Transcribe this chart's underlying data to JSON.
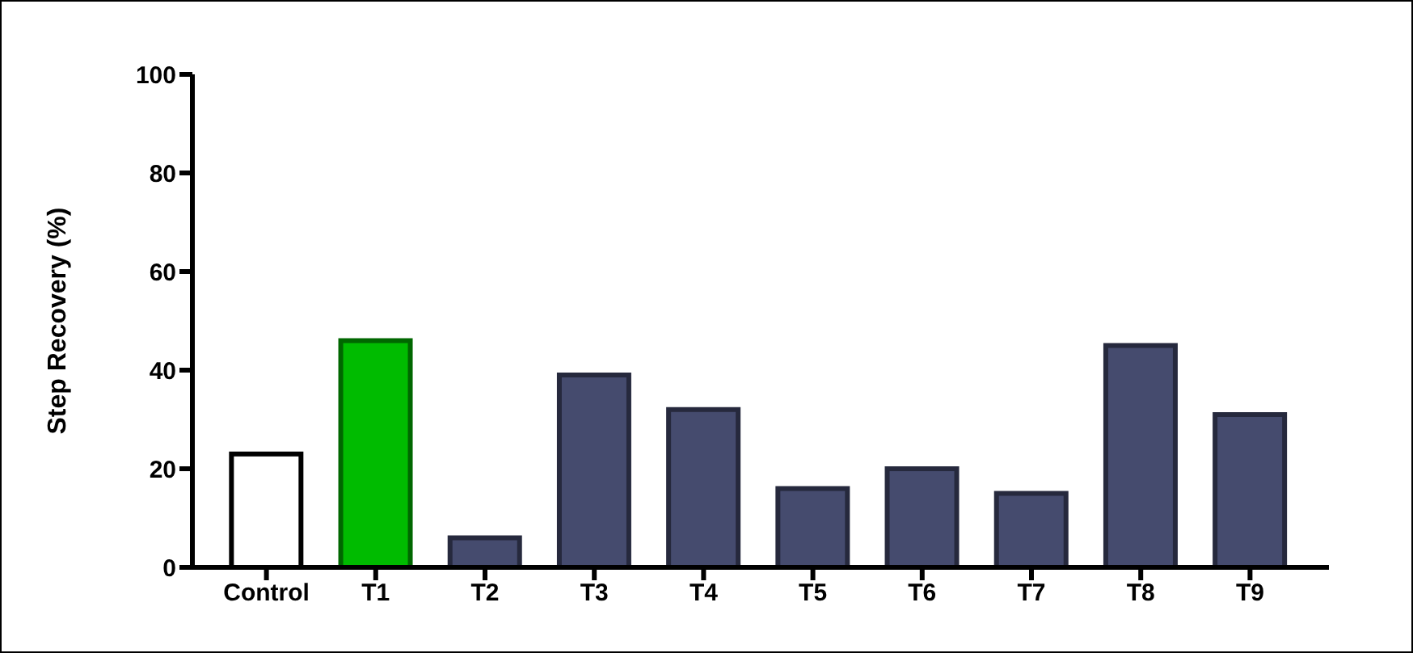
{
  "chart_data": {
    "type": "bar",
    "ylabel": "Step Recovery (%)",
    "categories": [
      "Control",
      "T1",
      "T2",
      "T3",
      "T4",
      "T5",
      "T6",
      "T7",
      "T8",
      "T9"
    ],
    "values": [
      23,
      46,
      6,
      39,
      32,
      16,
      20,
      15,
      45,
      31
    ],
    "colors": [
      "#ffffff",
      "#00bb00",
      "#454b6e",
      "#454b6e",
      "#454b6e",
      "#454b6e",
      "#454b6e",
      "#454b6e",
      "#454b6e",
      "#454b6e"
    ],
    "ylim": [
      0,
      100
    ],
    "yticks": [
      0,
      20,
      40,
      60,
      80,
      100
    ],
    "grid": false,
    "legend": false
  }
}
